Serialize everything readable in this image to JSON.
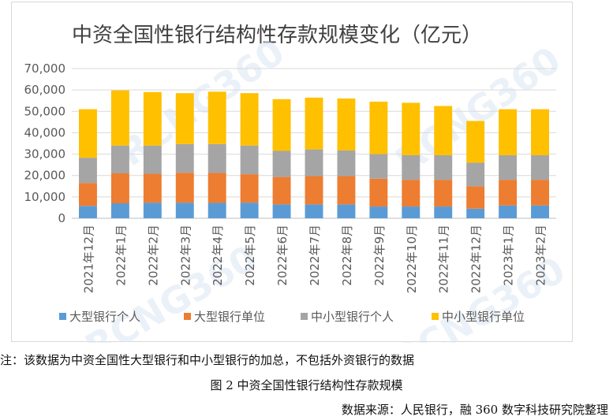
{
  "chart_data": {
    "type": "bar",
    "stacked": true,
    "title": "中资全国性银行结构性存款规模变化（亿元）",
    "watermark": "RCNG360",
    "categories": [
      "2021年12月",
      "2022年1月",
      "2022年2月",
      "2022年3月",
      "2022年4月",
      "2022年5月",
      "2022年6月",
      "2022年7月",
      "2022年8月",
      "2022年9月",
      "2022年10月",
      "2022年11月",
      "2022年12月",
      "2023年1月",
      "2023年2月"
    ],
    "series": [
      {
        "name": "大型银行个人",
        "color": "#5b9bd5",
        "values": [
          5800,
          7000,
          7300,
          7300,
          7200,
          7300,
          6500,
          6500,
          6500,
          5500,
          5500,
          5500,
          4500,
          6000,
          6000
        ]
      },
      {
        "name": "大型银行单位",
        "color": "#ed7d31",
        "values": [
          10700,
          14000,
          13500,
          14000,
          14000,
          13300,
          12800,
          13200,
          13200,
          13000,
          12500,
          12500,
          10500,
          12000,
          12000
        ]
      },
      {
        "name": "中小型银行个人",
        "color": "#a5a5a5",
        "values": [
          11800,
          13000,
          13200,
          13400,
          13500,
          13400,
          12200,
          12500,
          12000,
          11500,
          11500,
          11500,
          11000,
          11500,
          11500
        ]
      },
      {
        "name": "中小型银行单位",
        "color": "#ffc000",
        "values": [
          22700,
          25800,
          25000,
          23800,
          24500,
          24500,
          24200,
          24200,
          24300,
          24500,
          24500,
          23000,
          19500,
          21500,
          21500
        ]
      }
    ],
    "y_ticks": [
      "0",
      "10,000",
      "20,000",
      "30,000",
      "40,000",
      "50,000",
      "60,000",
      "70,000"
    ],
    "ylim": [
      0,
      70000
    ],
    "grid": true,
    "legend": "bottom"
  },
  "notes": {
    "footnote": "注：该数据为中资全国性大型银行和中小型银行的加总，不包括外资银行的数据",
    "caption": "图 2 中资全国性银行结构性存款规模",
    "source": "数据来源：人民银行，融 360 数字科技研究院整理"
  }
}
